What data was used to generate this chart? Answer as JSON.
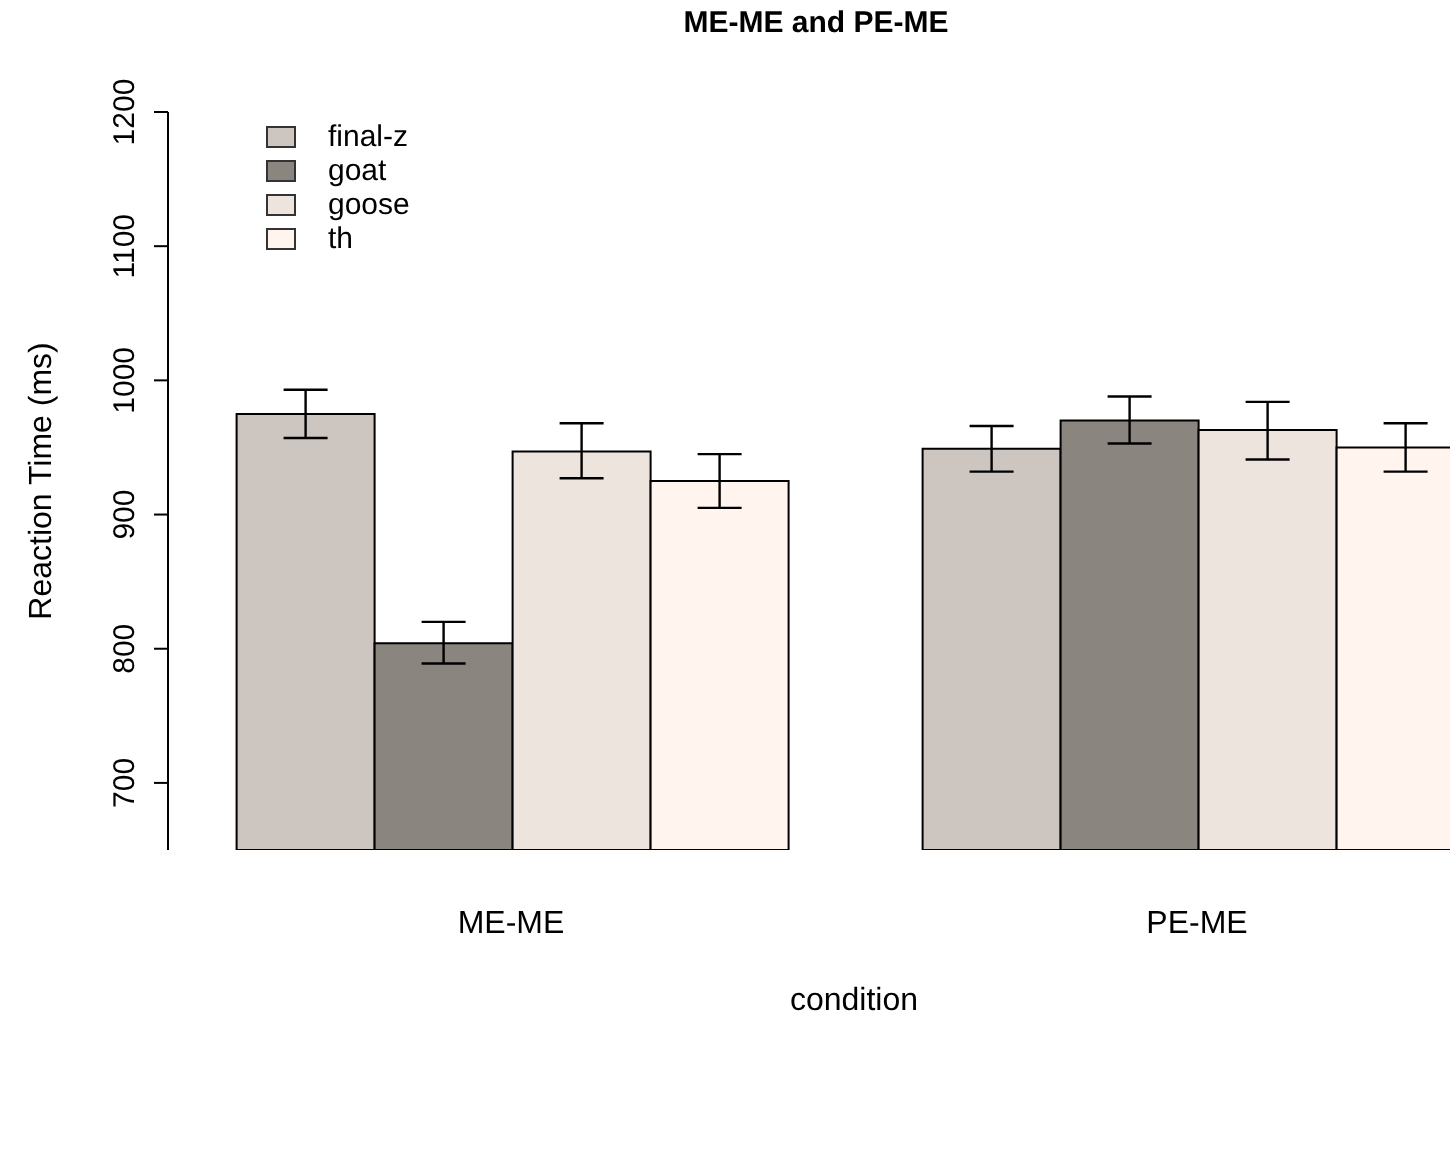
{
  "chart_data": {
    "type": "bar",
    "title": "ME-ME and PE-ME",
    "xlabel": "condition",
    "ylabel": "Reaction Time (ms)",
    "categories": [
      "ME-ME",
      "PE-ME"
    ],
    "series": [
      {
        "name": "final-z",
        "color": "#cdc5c0",
        "values": [
          975,
          949
        ],
        "errors": [
          [
            957,
            993
          ],
          [
            932,
            966
          ]
        ]
      },
      {
        "name": "goat",
        "color": "#8b8580",
        "values": [
          804,
          970
        ],
        "errors": [
          [
            789,
            820
          ],
          [
            953,
            988
          ]
        ]
      },
      {
        "name": "goose",
        "color": "#ede4de",
        "values": [
          947,
          963
        ],
        "errors": [
          [
            927,
            968
          ],
          [
            941,
            984
          ]
        ]
      },
      {
        "name": "th",
        "color": "#fff4ee",
        "values": [
          925,
          950
        ],
        "errors": [
          [
            905,
            945
          ],
          [
            932,
            968
          ]
        ]
      }
    ],
    "ylim": [
      650,
      1200
    ],
    "yticks": [
      700,
      800,
      900,
      1000,
      1100,
      1200
    ],
    "grid": false,
    "legend": "top left"
  }
}
